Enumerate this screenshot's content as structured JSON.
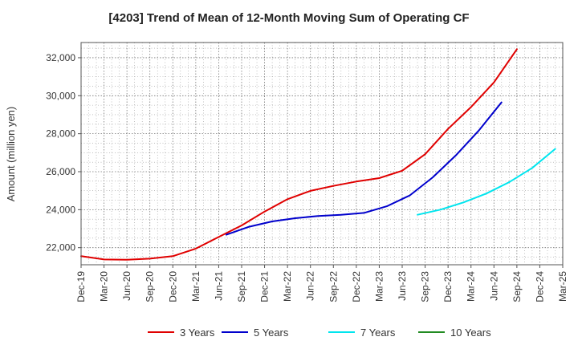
{
  "chart_data": {
    "type": "line",
    "title": "[4203]  Trend of Mean of 12-Month Moving Sum of Operating CF",
    "xlabel": "",
    "ylabel": "Amount (million yen)",
    "ylim": [
      21100,
      32800
    ],
    "yticks": [
      22000,
      24000,
      26000,
      28000,
      30000,
      32000
    ],
    "ytick_labels": [
      "22,000",
      "24,000",
      "26,000",
      "28,000",
      "30,000",
      "32,000"
    ],
    "x_tick_labels": [
      "Dec-19",
      "Mar-20",
      "Jun-20",
      "Sep-20",
      "Dec-20",
      "Mar-21",
      "Jun-21",
      "Sep-21",
      "Dec-21",
      "Mar-22",
      "Jun-22",
      "Sep-22",
      "Dec-22",
      "Mar-23",
      "Jun-23",
      "Sep-23",
      "Dec-23",
      "Mar-24",
      "Jun-24",
      "Sep-24",
      "Dec-24",
      "Mar-25"
    ],
    "grid": true,
    "legend_position": "bottom",
    "series": [
      {
        "name": "3 Years",
        "color": "#e00000",
        "start_index": 0,
        "values": [
          21550,
          21380,
          21360,
          21420,
          21550,
          21950,
          22560,
          23170,
          23900,
          24550,
          24990,
          25250,
          25480,
          25660,
          26050,
          26920,
          28250,
          29400,
          30700,
          32450
        ]
      },
      {
        "name": "5 Years",
        "color": "#0000cc",
        "start_index": 6.33,
        "values": [
          22680,
          23100,
          23380,
          23550,
          23670,
          23730,
          23830,
          24180,
          24750,
          25700,
          26850,
          28150,
          29650
        ]
      },
      {
        "name": "7 Years",
        "color": "#00e5ee",
        "start_index": 14.67,
        "values": [
          23730,
          24000,
          24380,
          24850,
          25450,
          26200,
          27200
        ]
      },
      {
        "name": "10 Years",
        "color": "#228b22",
        "start_index": null,
        "values": []
      }
    ]
  }
}
